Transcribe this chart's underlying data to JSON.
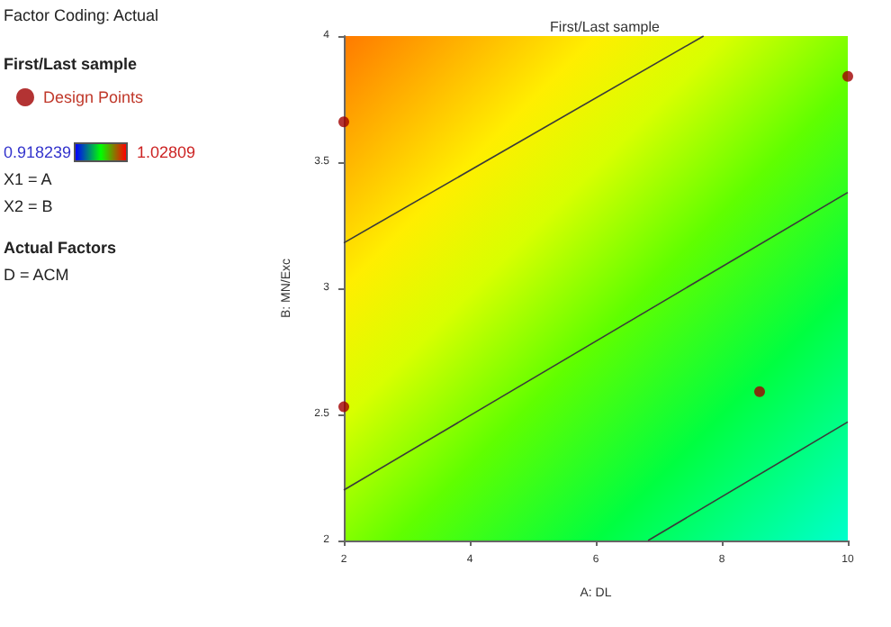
{
  "chart_data": {
    "type": "scatter",
    "title": "First/Last sample",
    "subtitle": "Factor Coding: Actual",
    "legend_title": "First/Last sample",
    "xlabel": "A: DL",
    "ylabel": "B: MN/Exc",
    "annotations": [
      "0.918239",
      "1.02809",
      "X1 = A",
      "X2 = B",
      "Actual Factors",
      "D = ACM"
    ],
    "xlim": [
      2,
      10
    ],
    "ylim": [
      2,
      4
    ],
    "xticks": [
      2,
      4,
      6,
      8,
      10
    ],
    "yticks": [
      2,
      2.5,
      3,
      3.5,
      4
    ],
    "legend": "left",
    "marker": "circle",
    "series": [
      {
        "type": "line",
        "marker": "none",
        "color": "#3a3a3a",
        "x": [
          2,
          7.71
        ],
        "values": [
          3.18,
          4
        ]
      },
      {
        "type": "line",
        "marker": "none",
        "color": "#3a3a3a",
        "x": [
          2,
          10
        ],
        "values": [
          2.2,
          3.38
        ]
      },
      {
        "type": "line",
        "marker": "none",
        "color": "#3a3a3a",
        "x": [
          6.83,
          10
        ],
        "values": [
          2,
          2.47
        ]
      },
      {
        "name": "Design Points",
        "color": "#a00000",
        "x": [
          2,
          10,
          2,
          8.6
        ],
        "values": [
          3.66,
          3.84,
          2.53,
          2.59
        ]
      }
    ]
  }
}
